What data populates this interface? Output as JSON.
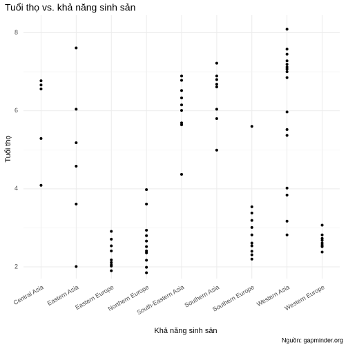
{
  "chart_data": {
    "type": "strip",
    "title": "Tuổi thọ vs. khả năng sinh sản",
    "x_label": "Khả năng sinh sản",
    "y_label": "Tuổi thọ",
    "caption": "Nguồn: gapminder.org",
    "categories": [
      "Central Asia",
      "Eastern Asia",
      "Eastern Europe",
      "Northern Europe",
      "South-Eastern Asia",
      "Southern Asia",
      "Southern Europe",
      "Western Asia",
      "Western Europe"
    ],
    "values": [
      [
        6.77,
        6.66,
        6.56,
        5.29,
        4.09
      ],
      [
        7.61,
        6.04,
        5.18,
        4.58,
        3.61,
        2.01
      ],
      [
        2.91,
        2.71,
        2.54,
        2.41,
        2.18,
        2.11,
        2.05,
        2.02,
        1.9
      ],
      [
        3.98,
        3.61,
        2.94,
        2.8,
        2.66,
        2.52,
        2.41,
        2.36,
        2.17,
        1.99,
        1.85
      ],
      [
        6.89,
        6.78,
        6.52,
        6.33,
        6.15,
        6.01,
        5.69,
        5.64,
        4.37
      ],
      [
        7.22,
        6.89,
        6.8,
        6.68,
        6.61,
        6.04,
        5.8,
        4.99
      ],
      [
        5.6,
        3.54,
        3.38,
        3.19,
        3.01,
        2.82,
        2.61,
        2.54,
        2.4,
        2.31,
        2.2
      ],
      [
        8.09,
        7.58,
        7.45,
        7.28,
        7.19,
        7.12,
        7.07,
        7.0,
        6.85,
        5.97,
        5.52,
        5.37,
        4.02,
        3.84,
        3.17,
        2.82
      ],
      [
        3.07,
        2.82,
        2.73,
        2.68,
        2.61,
        2.56,
        2.52,
        2.38
      ]
    ],
    "color": "#000000",
    "ylim": [
      1.7,
      8.45
    ],
    "yticks": [
      2,
      4,
      6,
      8
    ],
    "minor_yticks": [
      3,
      5,
      7
    ],
    "grid": true
  }
}
